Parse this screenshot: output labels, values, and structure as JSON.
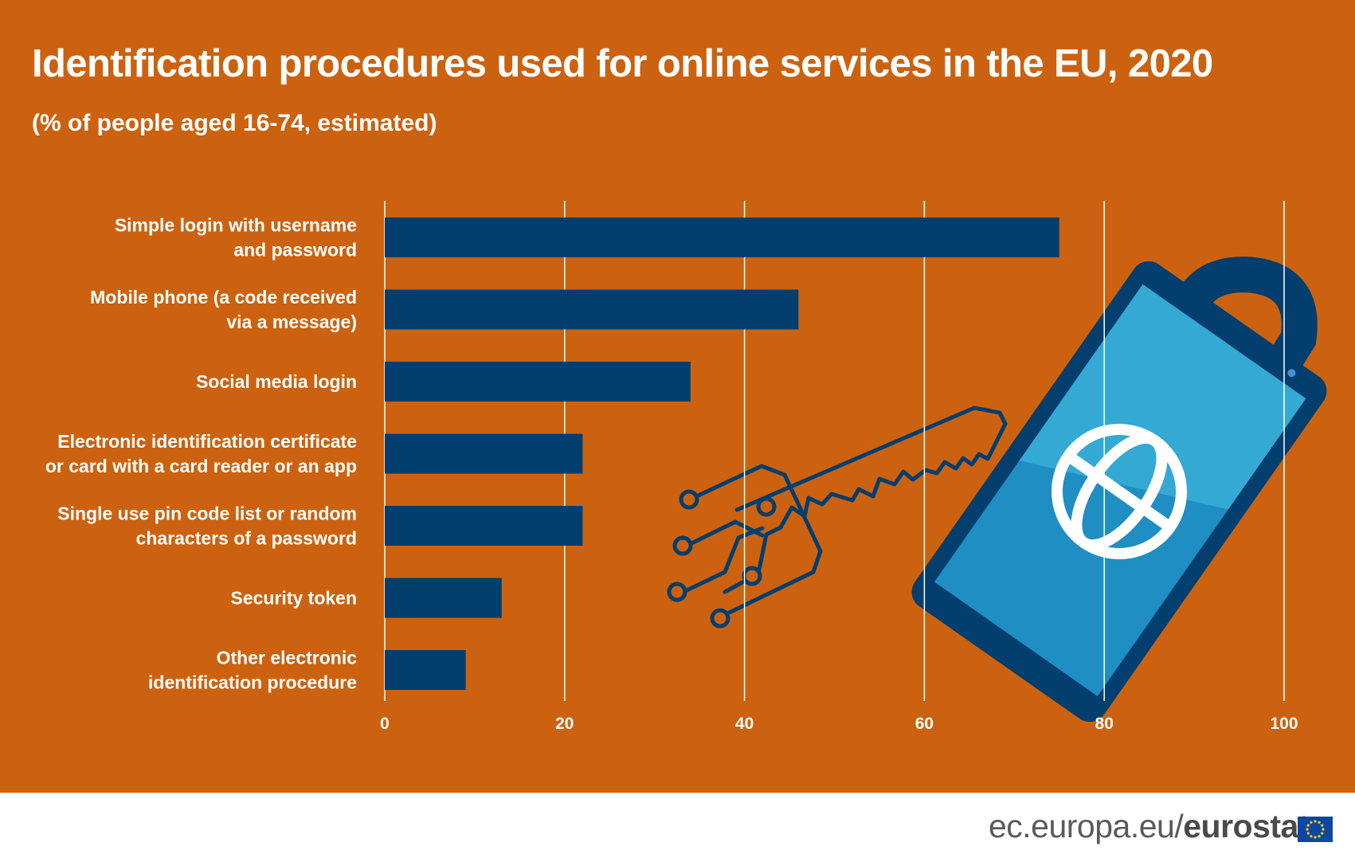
{
  "header": {
    "title": "Identification procedures used for online services in the EU, 2020",
    "subtitle": "(% of people aged 16-74, estimated)"
  },
  "chart_data": {
    "type": "bar",
    "orientation": "horizontal",
    "title": "Identification procedures used for online services in the EU, 2020",
    "subtitle": "(% of people aged 16-74, estimated)",
    "categories": [
      [
        "Simple login with username",
        "and password"
      ],
      [
        "Mobile phone (a code received",
        "via a message)"
      ],
      [
        "Social media login"
      ],
      [
        "Electronic identification certificate",
        "or card with a card reader or an app"
      ],
      [
        "Single use pin code list or random",
        "characters of a password"
      ],
      [
        "Security token"
      ],
      [
        "Other electronic",
        "identification procedure"
      ]
    ],
    "values": [
      75,
      46,
      34,
      22,
      22,
      13,
      9
    ],
    "xlim": [
      0,
      100
    ],
    "xticks": [
      0,
      20,
      40,
      60,
      80,
      100
    ],
    "grid": true,
    "bar_color": "#023e6e",
    "background_color": "#cc620f"
  },
  "footer": {
    "site": "ec.europa.eu/",
    "brand": "eurostat"
  },
  "icons": [
    "padlock-phone-icon",
    "globe-icon",
    "circuit-key-icon",
    "eu-flag-icon"
  ]
}
